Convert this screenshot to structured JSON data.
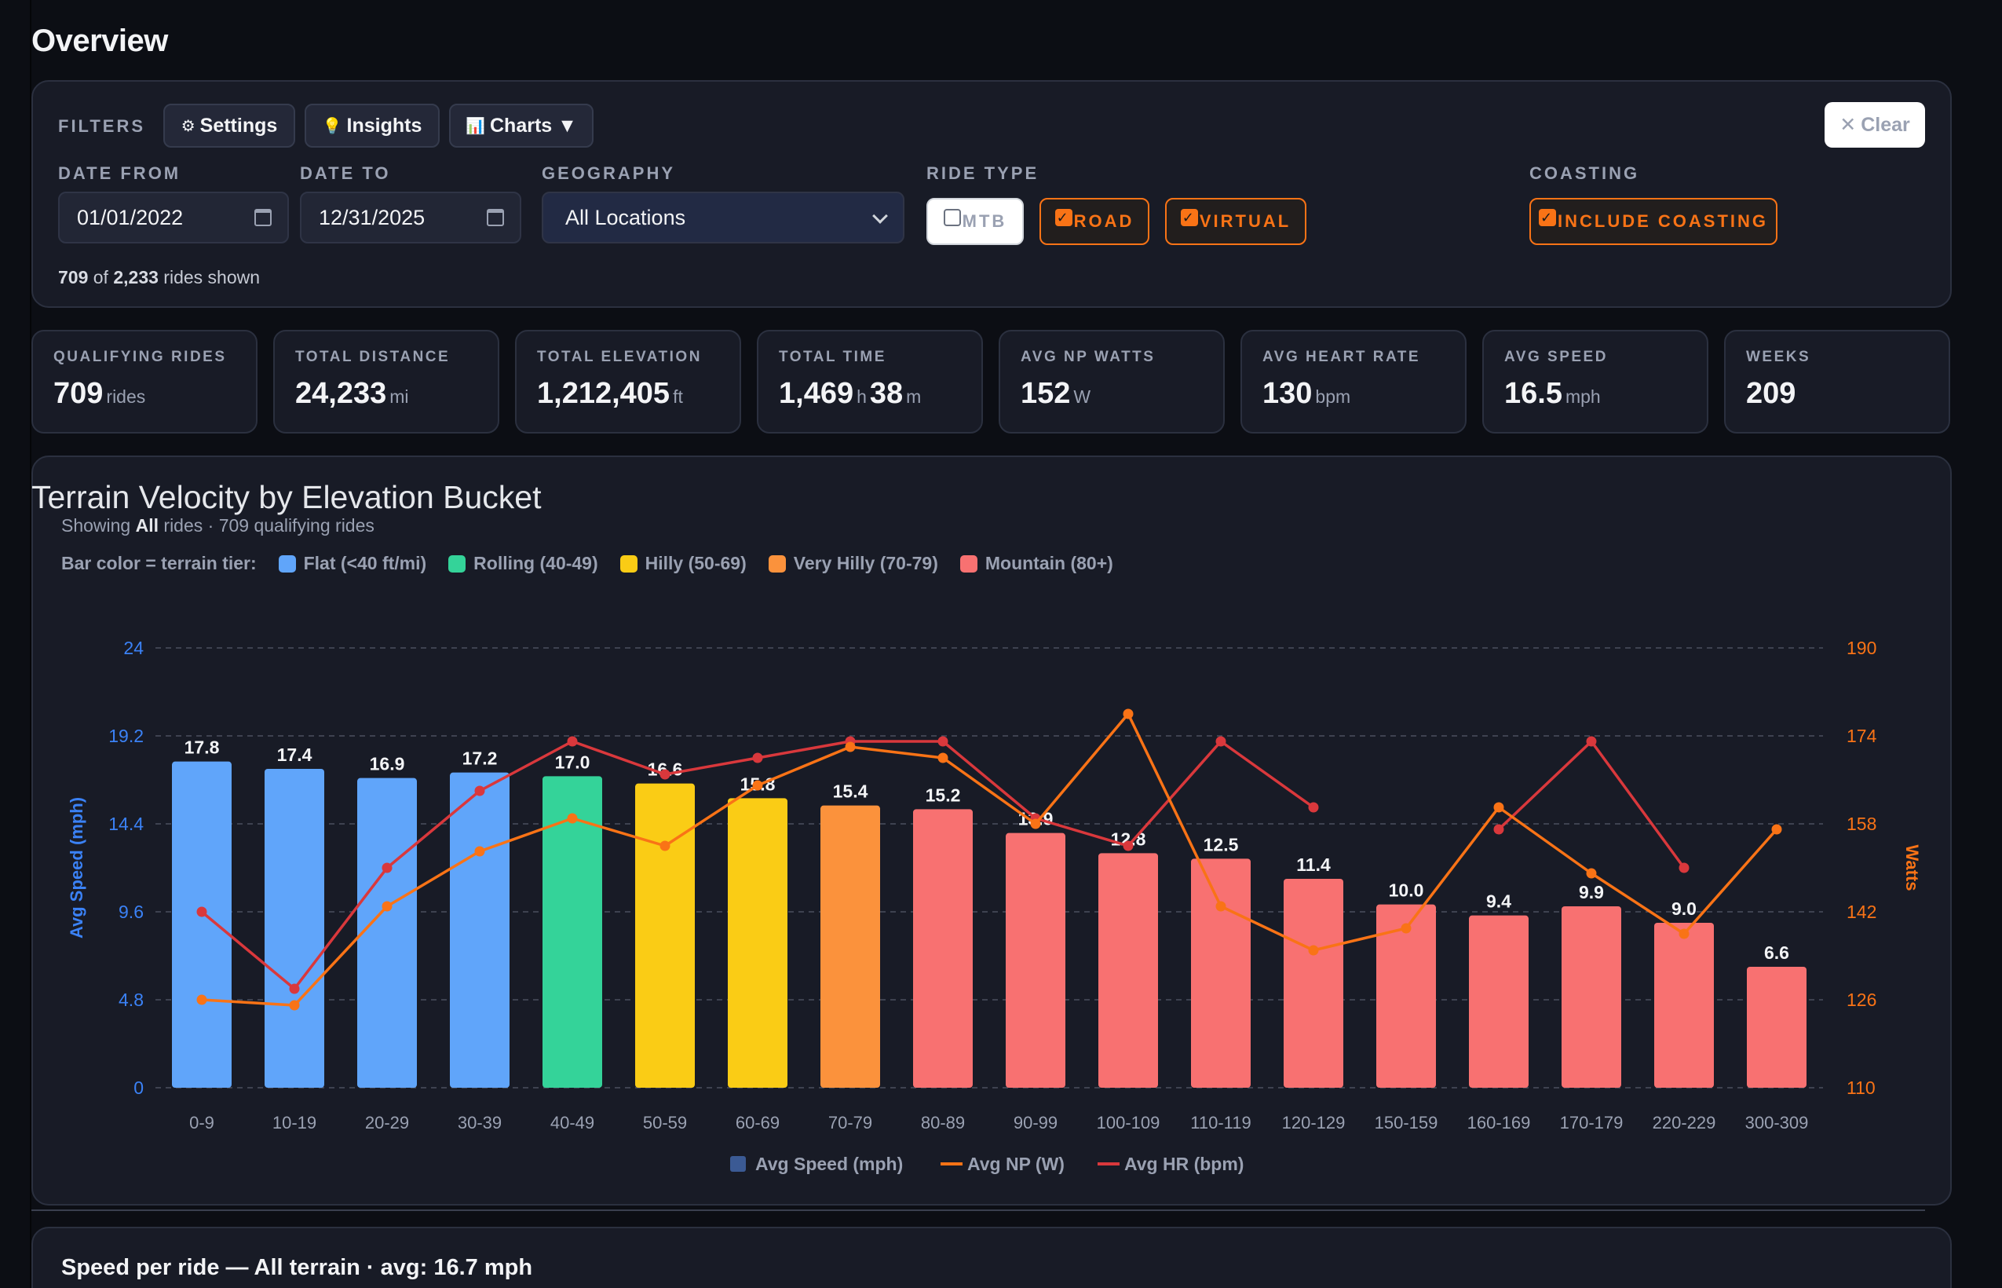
{
  "page": {
    "title": "Overview"
  },
  "filters": {
    "label": "FILTERS",
    "buttons": [
      {
        "icon": "⚙",
        "label": "Settings"
      },
      {
        "icon": "💡",
        "label": "Insights"
      },
      {
        "icon": "📊",
        "label": "Charts ▼"
      }
    ],
    "clear_label": "Clear",
    "date_from": {
      "label": "DATE FROM",
      "value": "01/01/2022"
    },
    "date_to": {
      "label": "DATE TO",
      "value": "12/31/2025"
    },
    "geography": {
      "label": "GEOGRAPHY",
      "value": "All Locations"
    },
    "ride_type": {
      "label": "RIDE TYPE",
      "options": [
        {
          "label": "MTB",
          "checked": false
        },
        {
          "label": "ROAD",
          "checked": true
        },
        {
          "label": "VIRTUAL",
          "checked": true
        }
      ]
    },
    "coasting": {
      "label": "COASTING",
      "option": {
        "label": "INCLUDE COASTING",
        "checked": true
      }
    },
    "rides_shown": {
      "shown": "709",
      "of_text": " of ",
      "total": "2,233",
      "suffix": " rides shown"
    }
  },
  "stats": [
    {
      "label": "QUALIFYING RIDES",
      "value": "709",
      "unit": "rides"
    },
    {
      "label": "TOTAL DISTANCE",
      "value": "24,233",
      "unit": "mi"
    },
    {
      "label": "TOTAL ELEVATION",
      "value": "1,212,405",
      "unit": "ft"
    },
    {
      "label": "TOTAL TIME",
      "value": "1,469",
      "unit": "h",
      "value2": "38",
      "unit2": "m"
    },
    {
      "label": "AVG NP WATTS",
      "value": "152",
      "unit": "W"
    },
    {
      "label": "AVG HEART RATE",
      "value": "130",
      "unit": "bpm"
    },
    {
      "label": "AVG SPEED",
      "value": "16.5",
      "unit": "mph"
    },
    {
      "label": "WEEKS",
      "value": "209",
      "unit": ""
    }
  ],
  "chart": {
    "title": "Terrain Velocity by Elevation Bucket",
    "subtitle": {
      "pre": "Showing ",
      "bold": "All",
      "post": " rides · 709 qualifying rides"
    },
    "tier_legend_label": "Bar color = terrain tier:",
    "tiers": [
      {
        "label": "Flat (<40 ft/mi)",
        "color": "#60a5fa"
      },
      {
        "label": "Rolling (40-49)",
        "color": "#34d399"
      },
      {
        "label": "Hilly (50-69)",
        "color": "#facc15"
      },
      {
        "label": "Very Hilly (70-79)",
        "color": "#fb923c"
      },
      {
        "label": "Mountain (80+)",
        "color": "#f87171"
      }
    ],
    "series_legend": [
      {
        "label": "Avg Speed (mph)",
        "color": "#3b5a94",
        "kind": "box"
      },
      {
        "label": "Avg NP (W)",
        "color": "#f97316",
        "kind": "line"
      },
      {
        "label": "Avg HR (bpm)",
        "color": "#d9383c",
        "kind": "line"
      }
    ]
  },
  "chart_data": {
    "type": "bar",
    "categories": [
      "0-9",
      "10-19",
      "20-29",
      "30-39",
      "40-49",
      "50-59",
      "60-69",
      "70-79",
      "80-89",
      "90-99",
      "100-109",
      "110-119",
      "120-129",
      "150-159",
      "160-169",
      "170-179",
      "220-229",
      "300-309"
    ],
    "tier_index": [
      0,
      0,
      0,
      0,
      1,
      2,
      2,
      3,
      4,
      4,
      4,
      4,
      4,
      4,
      4,
      4,
      4,
      4
    ],
    "series": [
      {
        "name": "Avg Speed (mph)",
        "axis": "left",
        "values": [
          17.8,
          17.4,
          16.9,
          17.2,
          17.0,
          16.6,
          15.8,
          15.4,
          15.2,
          13.9,
          12.8,
          12.5,
          11.4,
          10.0,
          9.4,
          9.9,
          9.0,
          6.6
        ]
      },
      {
        "name": "Avg NP (W)",
        "axis": "right",
        "values": [
          126,
          125,
          143,
          153,
          159,
          154,
          165,
          172,
          170,
          158,
          178,
          143,
          135,
          139,
          161,
          149,
          138,
          157
        ]
      },
      {
        "name": "Avg HR (bpm)",
        "axis": "hr",
        "values": [
          142,
          128,
          150,
          164,
          173,
          167,
          170,
          173,
          173,
          159,
          154,
          173,
          161,
          null,
          157,
          173,
          150,
          null
        ]
      }
    ],
    "ylabel": "Avg Speed (mph)",
    "y2label": "Watts",
    "y_ticks": [
      "0",
      "4.8",
      "9.6",
      "14.4",
      "19.2",
      "24"
    ],
    "y2_ticks": [
      "110",
      "126",
      "142",
      "158",
      "174",
      "190"
    ],
    "ylim": [
      0,
      24
    ],
    "y2lim": [
      110,
      190
    ],
    "grid": true
  },
  "speed_panel": {
    "title": "Speed per ride — All terrain · avg: 16.7 mph"
  }
}
